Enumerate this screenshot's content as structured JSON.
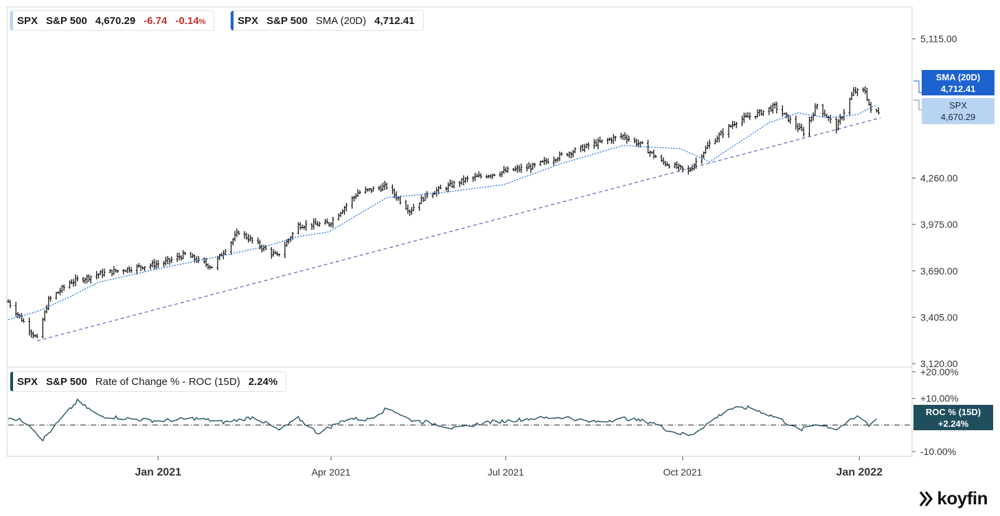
{
  "legend_main": {
    "ticker": "SPX",
    "name": "S&P 500",
    "price": "4,670.29",
    "change": "-6.74",
    "change_pct": "-0.14",
    "change_pct_unit": "%"
  },
  "legend_sma": {
    "ticker": "SPX",
    "name": "S&P 500",
    "indicator": "SMA (20D)",
    "value": "4,712.41"
  },
  "legend_roc": {
    "ticker": "SPX",
    "name": "S&P 500",
    "indicator": "Rate of Change % - ROC (15D)",
    "value": "2.24%"
  },
  "tags": {
    "sma": {
      "label": "SMA (20D)",
      "value": "4,712.41"
    },
    "spx": {
      "label": "SPX",
      "value": "4,670.29"
    },
    "roc": {
      "label": "ROC % (15D)",
      "value": "+2.24%"
    }
  },
  "brand": {
    "name": "koyfin"
  },
  "colors": {
    "price_bars": "#111111",
    "sma_line": "#1e6fd9",
    "trendline": "#5b5fb8",
    "roc_line": "#1f4e5c",
    "sma_tag": "#1e62d0",
    "spx_tag": "#b9d3f3",
    "roc_tag": "#1f4e5c"
  },
  "chart_data": [
    {
      "type": "line",
      "subtype": "ohlc-bars with SMA overlay and trendline",
      "y_axis_ticks": [
        "5,115.00",
        "4,260.00",
        "3,975.00",
        "3,690.00",
        "3,405.00",
        "3,120.00"
      ],
      "ylim": [
        3120,
        5240
      ],
      "x_axis_ticks": [
        "Jan 2021",
        "Apr 2021",
        "Jul 2021",
        "Oct 2021",
        "Jan 2022"
      ],
      "x_range": [
        "2020-10-15",
        "2022-01-12"
      ],
      "series": [
        {
          "name": "SPX",
          "style": "ohlc-bars",
          "x": [
            "2020-10-15",
            "2020-10-30",
            "2020-11-05",
            "2020-11-16",
            "2020-12-01",
            "2020-12-15",
            "2021-01-04",
            "2021-01-15",
            "2021-01-29",
            "2021-02-12",
            "2021-02-26",
            "2021-03-04",
            "2021-03-15",
            "2021-03-31",
            "2021-04-15",
            "2021-04-30",
            "2021-05-12",
            "2021-05-21",
            "2021-06-10",
            "2021-06-30",
            "2021-07-15",
            "2021-07-30",
            "2021-08-16",
            "2021-08-31",
            "2021-09-10",
            "2021-09-20",
            "2021-10-04",
            "2021-10-15",
            "2021-10-29",
            "2021-11-10",
            "2021-11-18",
            "2021-11-30",
            "2021-12-03",
            "2021-12-10",
            "2021-12-20",
            "2021-12-29",
            "2022-01-04",
            "2022-01-07",
            "2022-01-10"
          ],
          "values": [
            3500,
            3270,
            3510,
            3620,
            3670,
            3700,
            3740,
            3790,
            3715,
            3930,
            3820,
            3780,
            3970,
            3980,
            4170,
            4210,
            4060,
            4160,
            4250,
            4300,
            4330,
            4400,
            4470,
            4520,
            4460,
            4360,
            4300,
            4470,
            4610,
            4660,
            4700,
            4570,
            4540,
            4710,
            4570,
            4790,
            4795,
            4670,
            4670
          ]
        },
        {
          "name": "SMA (20D)",
          "style": "dotted-line",
          "x": [
            "2020-10-15",
            "2020-10-30",
            "2020-11-16",
            "2020-12-01",
            "2020-12-31",
            "2021-01-29",
            "2021-02-26",
            "2021-03-15",
            "2021-03-31",
            "2021-04-30",
            "2021-05-28",
            "2021-06-30",
            "2021-07-30",
            "2021-08-31",
            "2021-09-30",
            "2021-10-15",
            "2021-11-15",
            "2021-11-30",
            "2021-12-15",
            "2021-12-31",
            "2022-01-10"
          ],
          "values": [
            3390,
            3440,
            3530,
            3620,
            3700,
            3770,
            3840,
            3900,
            3930,
            4140,
            4170,
            4220,
            4350,
            4460,
            4440,
            4360,
            4600,
            4660,
            4630,
            4650,
            4712.41
          ]
        },
        {
          "name": "trendline",
          "style": "dashed-line",
          "x": [
            "2020-10-30",
            "2022-01-12"
          ],
          "values": [
            3260,
            4630
          ]
        }
      ]
    },
    {
      "type": "line",
      "name": "Rate of Change % - ROC (15D)",
      "y_axis_ticks": [
        "+20.00%",
        "+10.00%",
        "-10.00%"
      ],
      "ylim": [
        -11,
        21
      ],
      "zero_line": "dash-dot",
      "x": [
        "2020-10-15",
        "2020-10-25",
        "2020-11-02",
        "2020-11-10",
        "2020-11-20",
        "2020-12-01",
        "2020-12-15",
        "2021-01-01",
        "2021-01-20",
        "2021-02-05",
        "2021-02-20",
        "2021-03-05",
        "2021-03-15",
        "2021-03-25",
        "2021-04-10",
        "2021-04-20",
        "2021-05-01",
        "2021-05-12",
        "2021-05-25",
        "2021-06-05",
        "2021-06-20",
        "2021-07-01",
        "2021-07-15",
        "2021-08-01",
        "2021-08-15",
        "2021-09-01",
        "2021-09-15",
        "2021-09-25",
        "2021-10-05",
        "2021-10-15",
        "2021-10-25",
        "2021-11-05",
        "2021-11-20",
        "2021-12-01",
        "2021-12-10",
        "2021-12-20",
        "2022-01-01",
        "2022-01-06",
        "2022-01-10"
      ],
      "values": [
        3.0,
        1.0,
        -5.5,
        1.0,
        9.0,
        3.5,
        2.5,
        1.5,
        2.5,
        1.0,
        3.0,
        -2.0,
        2.5,
        -3.0,
        2.5,
        2.0,
        6.5,
        2.0,
        0.5,
        -1.5,
        1.0,
        1.5,
        2.5,
        3.0,
        1.0,
        2.5,
        1.0,
        -2.5,
        -4.0,
        1.0,
        6.0,
        6.5,
        2.5,
        -2.0,
        0.5,
        -1.5,
        3.5,
        0.0,
        2.24
      ]
    }
  ]
}
